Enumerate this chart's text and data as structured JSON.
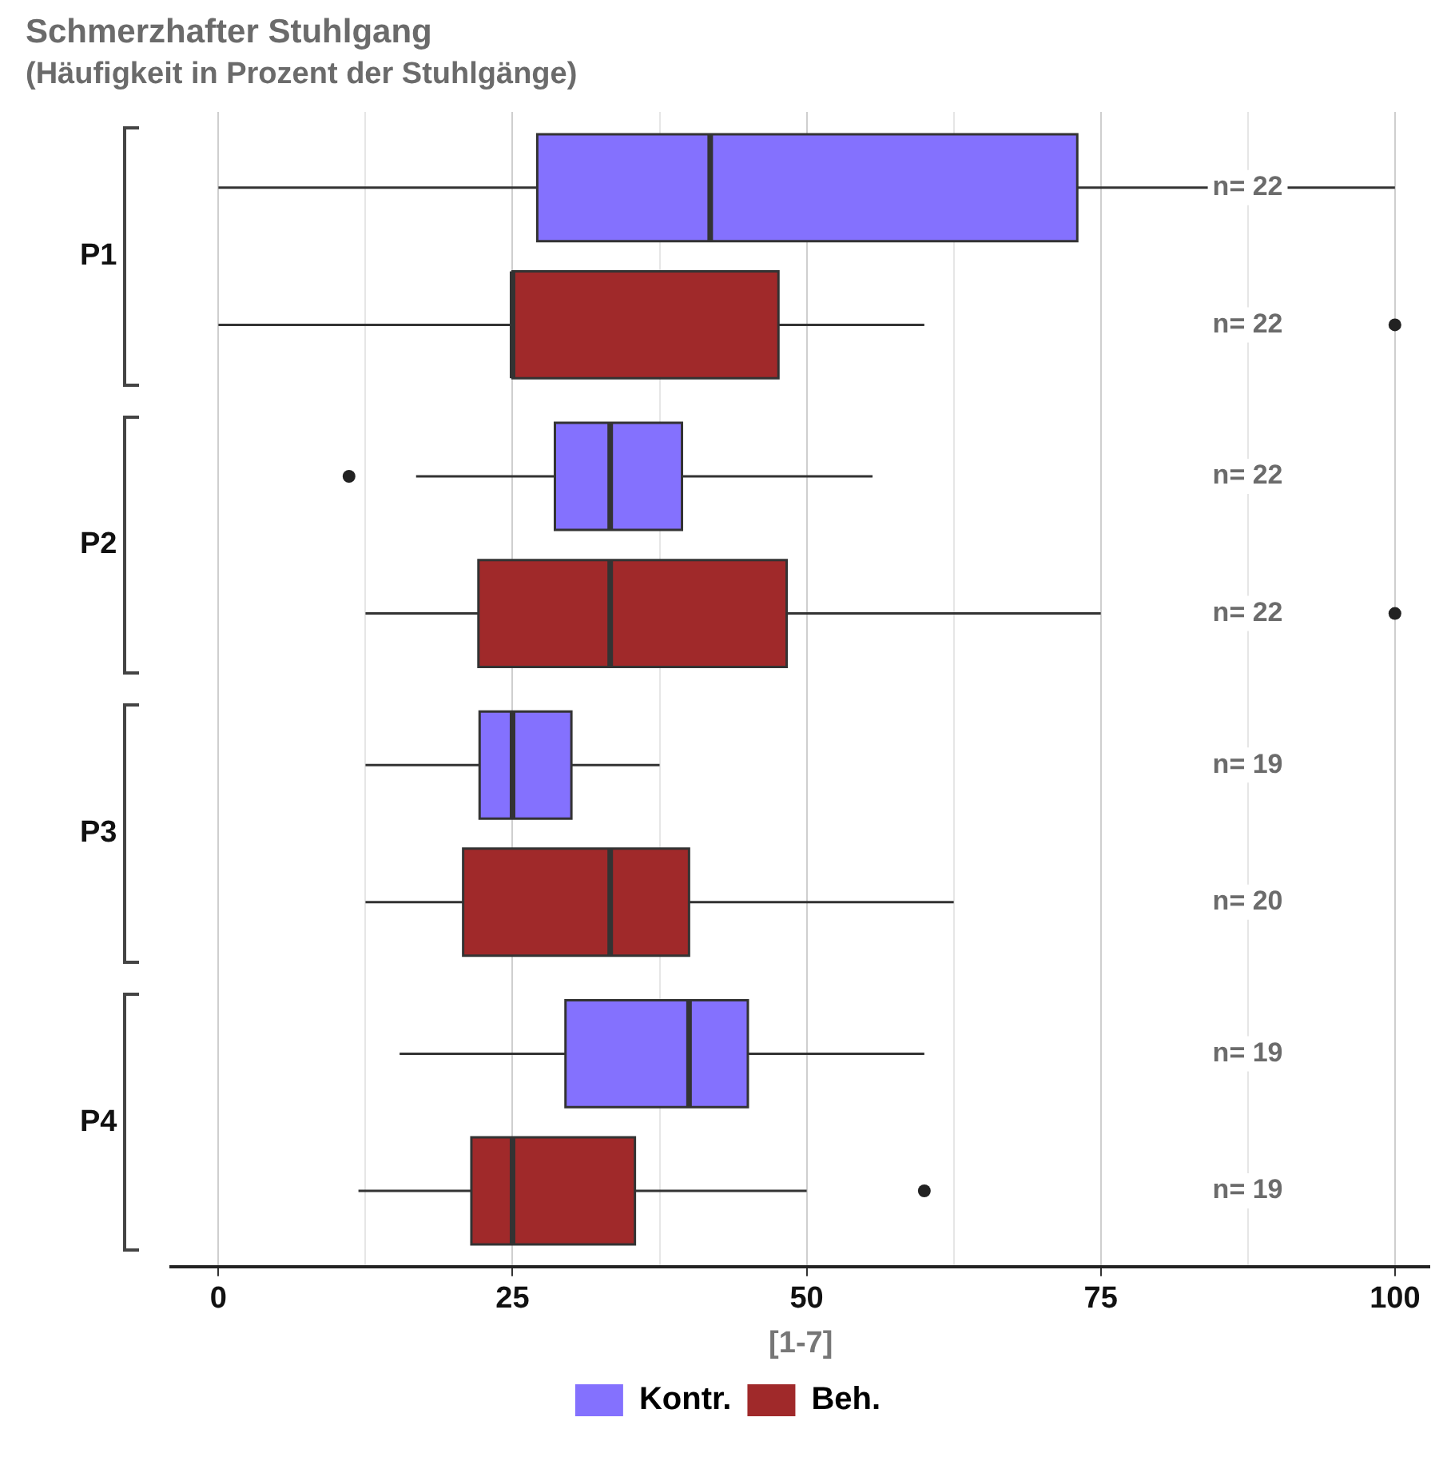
{
  "chart_data": {
    "type": "box",
    "orientation": "horizontal",
    "title": "Schmerzhafter Stuhlgang",
    "subtitle": "(Häufigkeit in Prozent der Stuhlgänge)",
    "xlabel": "[1-7]",
    "categories": [
      "P1",
      "P2",
      "P3",
      "P4"
    ],
    "series": [
      {
        "name": "Kontr.",
        "color": "#8471fe",
        "boxes": [
          {
            "low": 0,
            "q1": 27.1,
            "median": 41.8,
            "q3": 73,
            "high": 100
          },
          {
            "low": 16.8,
            "q1": 28.6,
            "median": 33.3,
            "q3": 39.4,
            "high": 55.6,
            "outliers": [
              11.1
            ]
          },
          {
            "low": 12.5,
            "q1": 22.2,
            "median": 25,
            "q3": 30,
            "high": 37.5
          },
          {
            "low": 15.4,
            "q1": 29.5,
            "median": 40,
            "q3": 45,
            "high": 60
          }
        ]
      },
      {
        "name": "Beh.",
        "color": "#a0292a",
        "boxes": [
          {
            "low": 0,
            "q1": 25,
            "median": 25,
            "q3": 47.6,
            "high": 60,
            "outliers": [
              100
            ]
          },
          {
            "low": 12.5,
            "q1": 22.1,
            "median": 33.3,
            "q3": 48.3,
            "high": 75,
            "outliers": [
              100
            ]
          },
          {
            "low": 12.5,
            "q1": 20.8,
            "median": 33.3,
            "q3": 40,
            "high": 62.5
          },
          {
            "low": 11.9,
            "q1": 21.5,
            "median": 25,
            "q3": 35.4,
            "high": 50,
            "outliers": [
              60
            ]
          }
        ]
      }
    ],
    "xlim": [
      -4,
      103
    ],
    "xticks": [
      0,
      {
        "value": 12.5,
        "label": null
      },
      25,
      {
        "value": 37.5,
        "label": null
      },
      50,
      {
        "value": 62.5,
        "label": null
      },
      75,
      {
        "value": 87.5,
        "label": null
      },
      100
    ],
    "grid": "x",
    "legend": "bottom",
    "annotations": [
      "n= 22",
      "n= 22",
      "n= 22",
      "n= 22",
      "n= 19",
      "n= 20",
      "n= 19",
      "n= 19"
    ]
  }
}
